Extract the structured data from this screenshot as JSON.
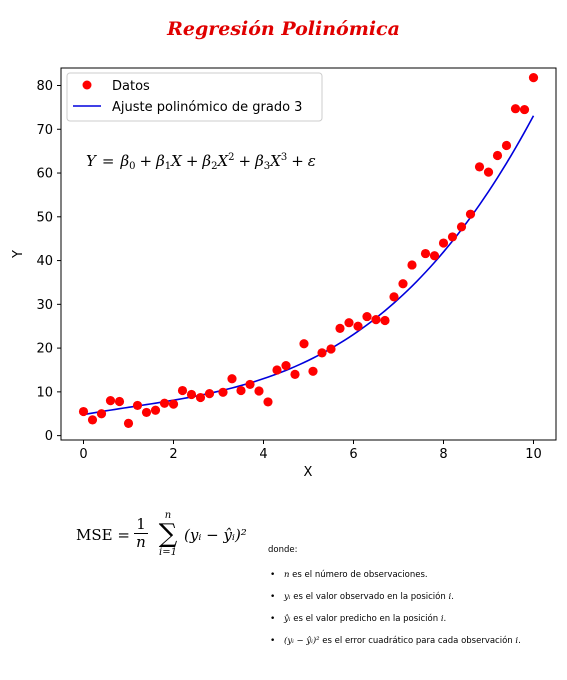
{
  "title": "Regresión Polinómica",
  "chart_data": {
    "type": "scatter",
    "xlabel": "X",
    "ylabel": "Y",
    "xlim": [
      -0.5,
      10.5
    ],
    "ylim": [
      -1,
      84
    ],
    "xticks": [
      0,
      2,
      4,
      6,
      8,
      10
    ],
    "yticks": [
      0,
      10,
      20,
      30,
      40,
      50,
      60,
      70,
      80
    ],
    "grid": false,
    "legend_position": "top-left",
    "series": [
      {
        "name": "Datos",
        "kind": "scatter",
        "color": "#ff0000",
        "points": [
          [
            0.0,
            5.5
          ],
          [
            0.2,
            3.6
          ],
          [
            0.4,
            5.0
          ],
          [
            0.6,
            8.0
          ],
          [
            0.8,
            7.8
          ],
          [
            1.0,
            2.8
          ],
          [
            1.2,
            6.9
          ],
          [
            1.4,
            5.3
          ],
          [
            1.6,
            5.8
          ],
          [
            1.8,
            7.4
          ],
          [
            2.0,
            7.2
          ],
          [
            2.2,
            10.3
          ],
          [
            2.4,
            9.4
          ],
          [
            2.6,
            8.7
          ],
          [
            2.8,
            9.6
          ],
          [
            3.1,
            9.9
          ],
          [
            3.3,
            13.0
          ],
          [
            3.5,
            10.3
          ],
          [
            3.7,
            11.7
          ],
          [
            3.9,
            10.2
          ],
          [
            4.1,
            7.7
          ],
          [
            4.3,
            15.0
          ],
          [
            4.5,
            16.0
          ],
          [
            4.7,
            14.0
          ],
          [
            4.9,
            21.0
          ],
          [
            5.1,
            14.7
          ],
          [
            5.3,
            18.9
          ],
          [
            5.5,
            19.8
          ],
          [
            5.7,
            24.5
          ],
          [
            5.9,
            25.8
          ],
          [
            6.1,
            25.0
          ],
          [
            6.3,
            27.2
          ],
          [
            6.5,
            26.5
          ],
          [
            6.7,
            26.3
          ],
          [
            6.9,
            31.7
          ],
          [
            7.1,
            34.7
          ],
          [
            7.3,
            39.0
          ],
          [
            7.6,
            41.6
          ],
          [
            7.8,
            41.1
          ],
          [
            8.0,
            44.0
          ],
          [
            8.2,
            45.4
          ],
          [
            8.4,
            47.7
          ],
          [
            8.6,
            50.6
          ],
          [
            8.8,
            61.4
          ],
          [
            9.0,
            60.2
          ],
          [
            9.2,
            64.0
          ],
          [
            9.4,
            66.3
          ],
          [
            9.6,
            74.7
          ],
          [
            9.8,
            74.5
          ],
          [
            10.0,
            81.8
          ]
        ]
      },
      {
        "name": "Ajuste polinómico de grado 3",
        "kind": "line",
        "color": "#0000dd",
        "polynomial_coefficients": [
          4.8,
          1.83,
          -0.24,
          0.074
        ]
      }
    ],
    "annotation": "Y = β0 + β1X + β2X² + β3X³ + ε"
  },
  "mse": {
    "lhs": "MSE =",
    "frac_num": "1",
    "frac_den": "n",
    "sum_top": "n",
    "sum_bottom": "i=1",
    "term": "(yᵢ − ŷᵢ)²"
  },
  "definitions": {
    "intro": "donde:",
    "items": [
      {
        "sym": "n",
        "text": " es el número de observaciones."
      },
      {
        "sym": "yᵢ",
        "text": " es el valor observado en la posición ",
        "tail_sym": "i",
        "tail": "."
      },
      {
        "sym": "ŷᵢ",
        "text": " es el valor predicho en la posición ",
        "tail_sym": "i",
        "tail": "."
      },
      {
        "sym": "(yᵢ − ŷᵢ)²",
        "text": " es el error cuadrático para cada observación ",
        "tail_sym": "i",
        "tail": "."
      }
    ]
  }
}
